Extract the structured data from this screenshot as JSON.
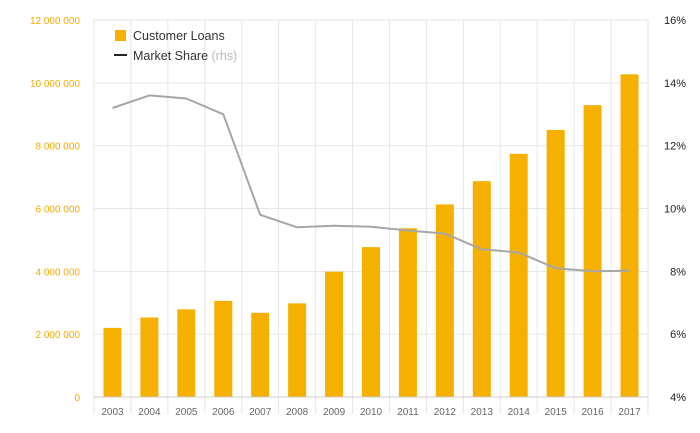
{
  "chart_data": {
    "type": "bar",
    "categories": [
      "2003",
      "2004",
      "2005",
      "2006",
      "2007",
      "2008",
      "2009",
      "2010",
      "2011",
      "2012",
      "2013",
      "2014",
      "2015",
      "2016",
      "2017"
    ],
    "series": [
      {
        "name": "Customer Loans",
        "kind": "bar",
        "axis": "left",
        "color": "#f5b000",
        "values": [
          2200000,
          2530000,
          2790000,
          3060000,
          2680000,
          2980000,
          3990000,
          4770000,
          5370000,
          6130000,
          6870000,
          7740000,
          8500000,
          9290000,
          10270000
        ]
      },
      {
        "name": "Market Share",
        "name_suffix": "(rhs)",
        "kind": "line",
        "axis": "right",
        "color": "#a6a6a6",
        "values": [
          13.2,
          13.6,
          13.5,
          13.0,
          9.8,
          9.4,
          9.45,
          9.42,
          9.3,
          9.2,
          8.7,
          8.6,
          8.1,
          8.0,
          8.02
        ]
      }
    ],
    "y_left": {
      "range": [
        0,
        12000000
      ],
      "ticks": [
        0,
        2000000,
        4000000,
        6000000,
        8000000,
        10000000,
        12000000
      ],
      "tick_labels": [
        "0",
        "2 000 000",
        "4 000 000",
        "6 000 000",
        "8 000 000",
        "10 000 000",
        "12 000 000"
      ],
      "color": "#f5a800"
    },
    "y_right": {
      "range": [
        4,
        16
      ],
      "ticks": [
        4,
        6,
        8,
        10,
        12,
        14,
        16
      ],
      "tick_labels": [
        "4%",
        "6%",
        "8%",
        "10%",
        "12%",
        "14%",
        "16%"
      ],
      "color": "#222222"
    },
    "grid": true,
    "grid_color": "#e6e6e6",
    "legend_position": "top-left",
    "legend_swatch_color": "#f5b000",
    "legend_line_color": "#222222"
  }
}
